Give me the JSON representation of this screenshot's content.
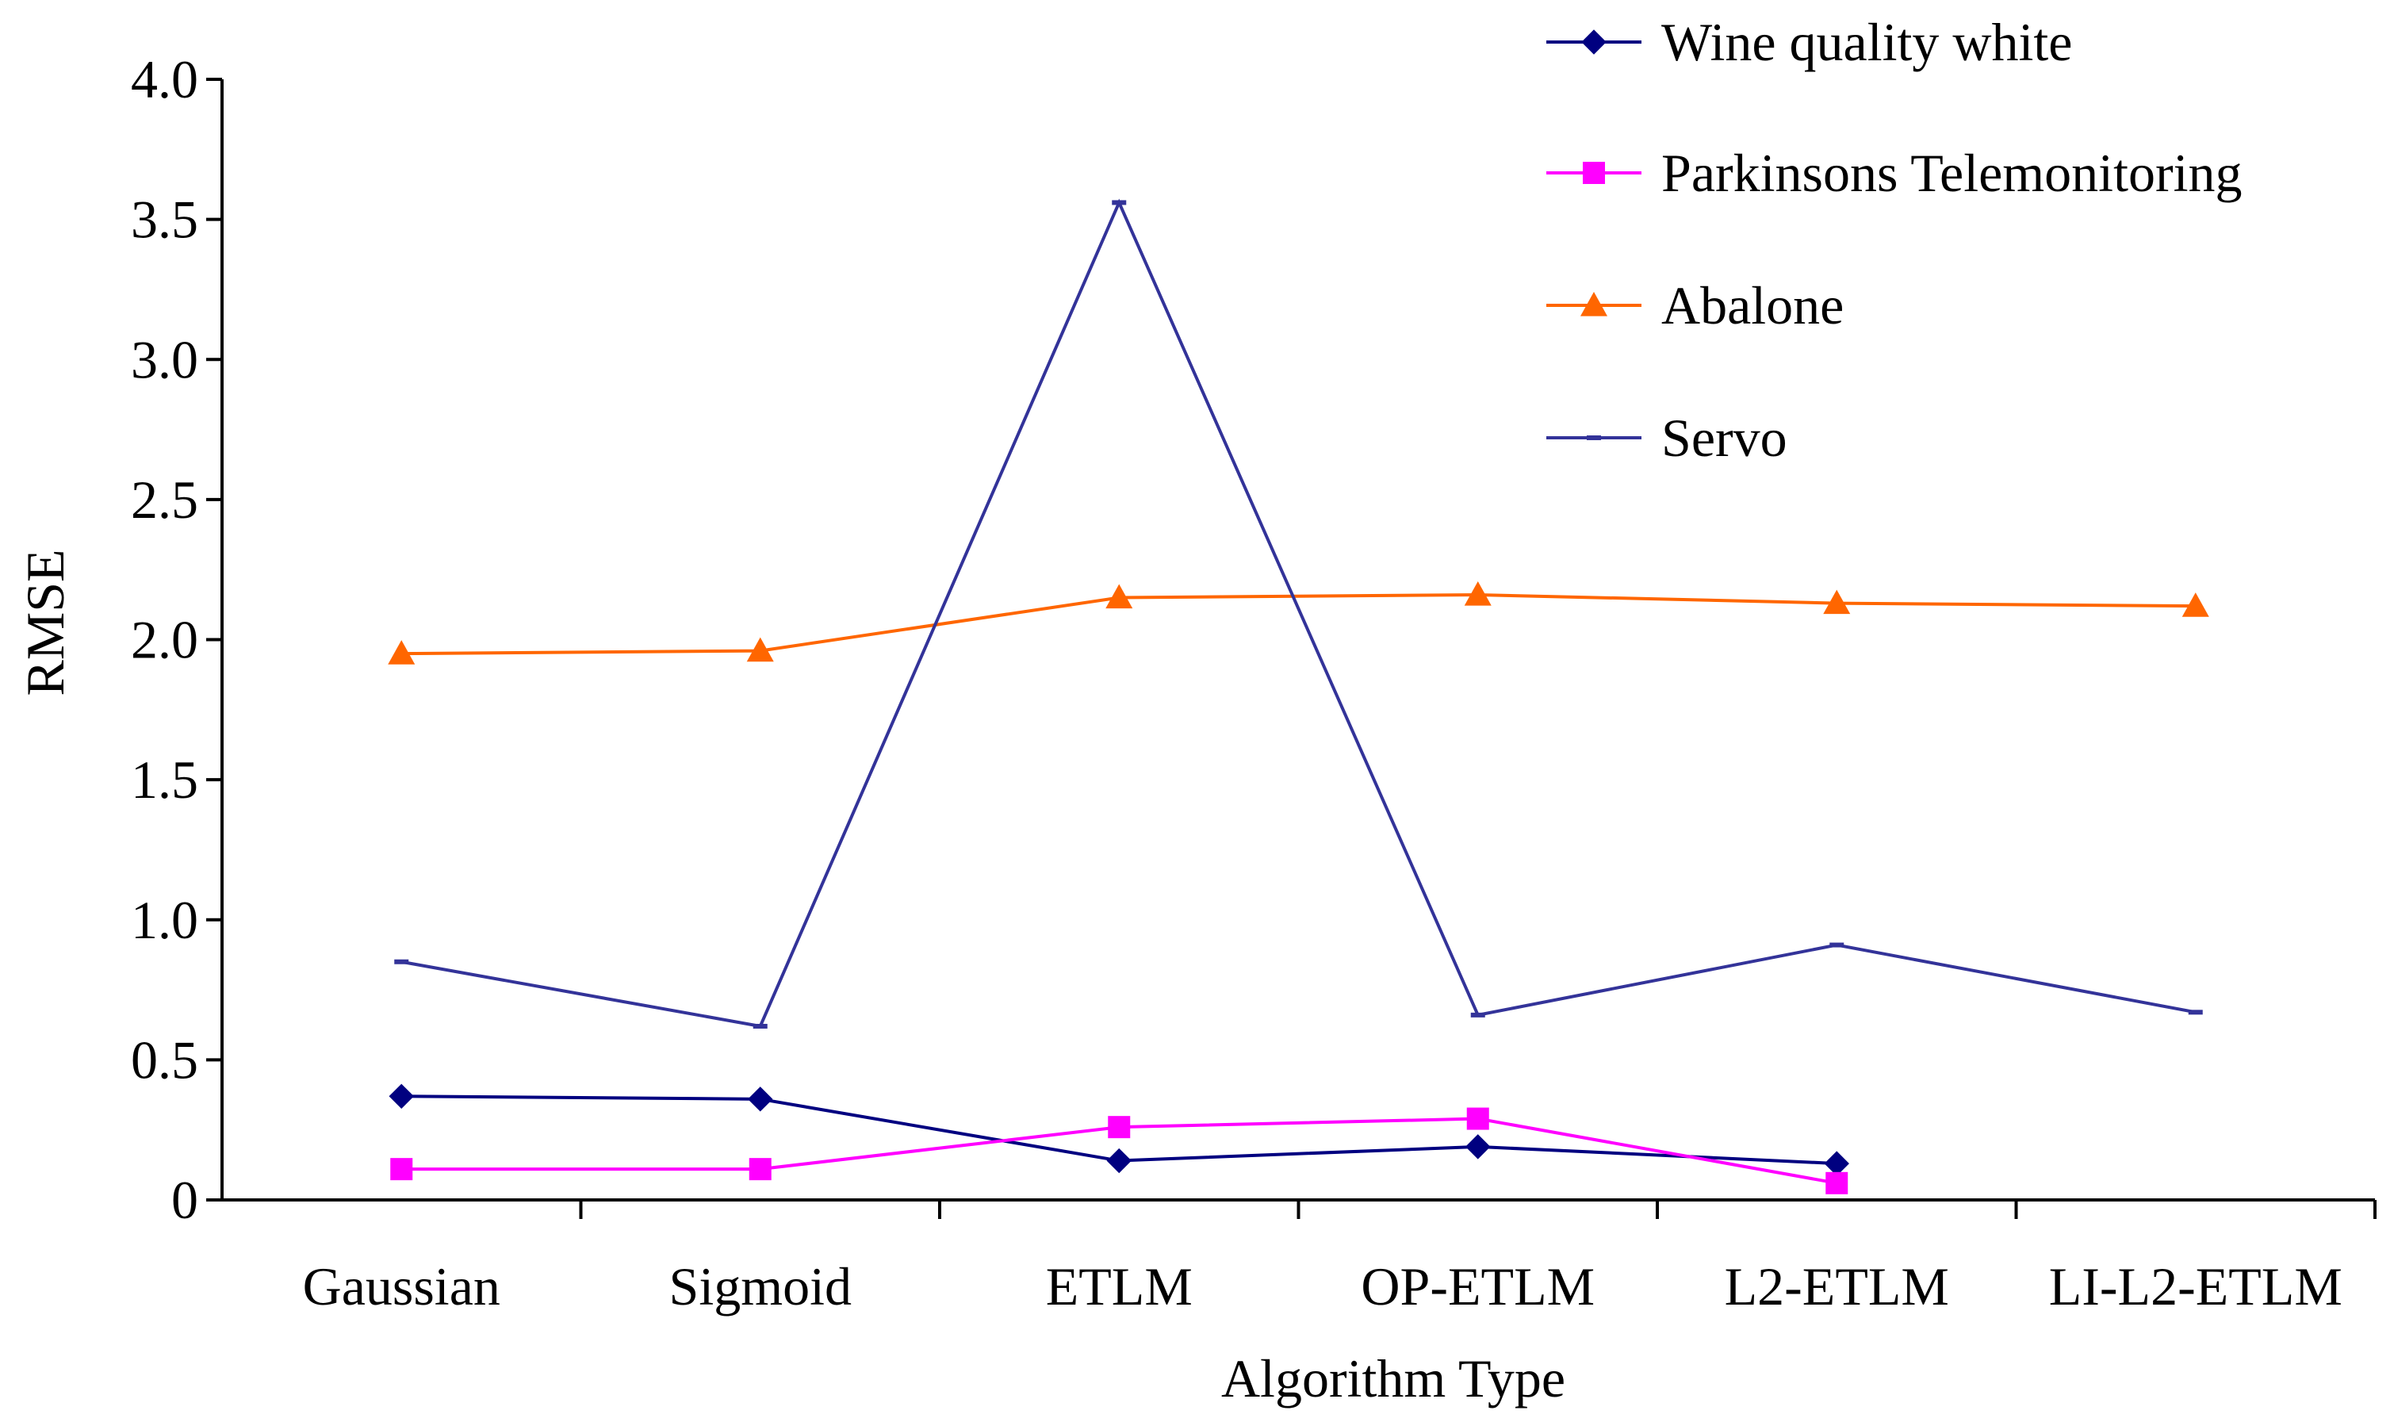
{
  "chart_data": {
    "type": "line",
    "title": "",
    "xlabel": "Algorithm Type",
    "ylabel": "RMSE",
    "ylim": [
      0,
      4.0
    ],
    "yticks": [
      {
        "value": 0,
        "label": "0"
      },
      {
        "value": 0.5,
        "label": "0.5"
      },
      {
        "value": 1.0,
        "label": "1.0"
      },
      {
        "value": 1.5,
        "label": "1.5"
      },
      {
        "value": 2.0,
        "label": "2.0"
      },
      {
        "value": 2.5,
        "label": "2.5"
      },
      {
        "value": 3.0,
        "label": "3.0"
      },
      {
        "value": 3.5,
        "label": "3.5"
      },
      {
        "value": 4.0,
        "label": "4.0"
      }
    ],
    "categories": [
      "Gaussian",
      "Sigmoid",
      "ETLM",
      "OP-ETLM",
      "L2-ETLM",
      "LI-L2-ETLM"
    ],
    "legend_position": "top-right",
    "grid": false,
    "series": [
      {
        "name": "Wine quality white",
        "color": "#000080",
        "marker": "diamond",
        "values": [
          0.37,
          0.36,
          0.14,
          0.19,
          0.13,
          null
        ]
      },
      {
        "name": "Parkinsons Telemonitoring",
        "color": "#FF00FF",
        "marker": "square",
        "values": [
          0.11,
          0.11,
          0.26,
          0.29,
          0.06,
          null
        ]
      },
      {
        "name": "Abalone",
        "color": "#FF6600",
        "marker": "triangle",
        "values": [
          1.95,
          1.96,
          2.15,
          2.16,
          2.13,
          2.12
        ]
      },
      {
        "name": "Servo",
        "color": "#333399",
        "marker": "dash",
        "values": [
          0.85,
          0.62,
          3.56,
          0.66,
          0.91,
          0.67
        ]
      }
    ]
  }
}
